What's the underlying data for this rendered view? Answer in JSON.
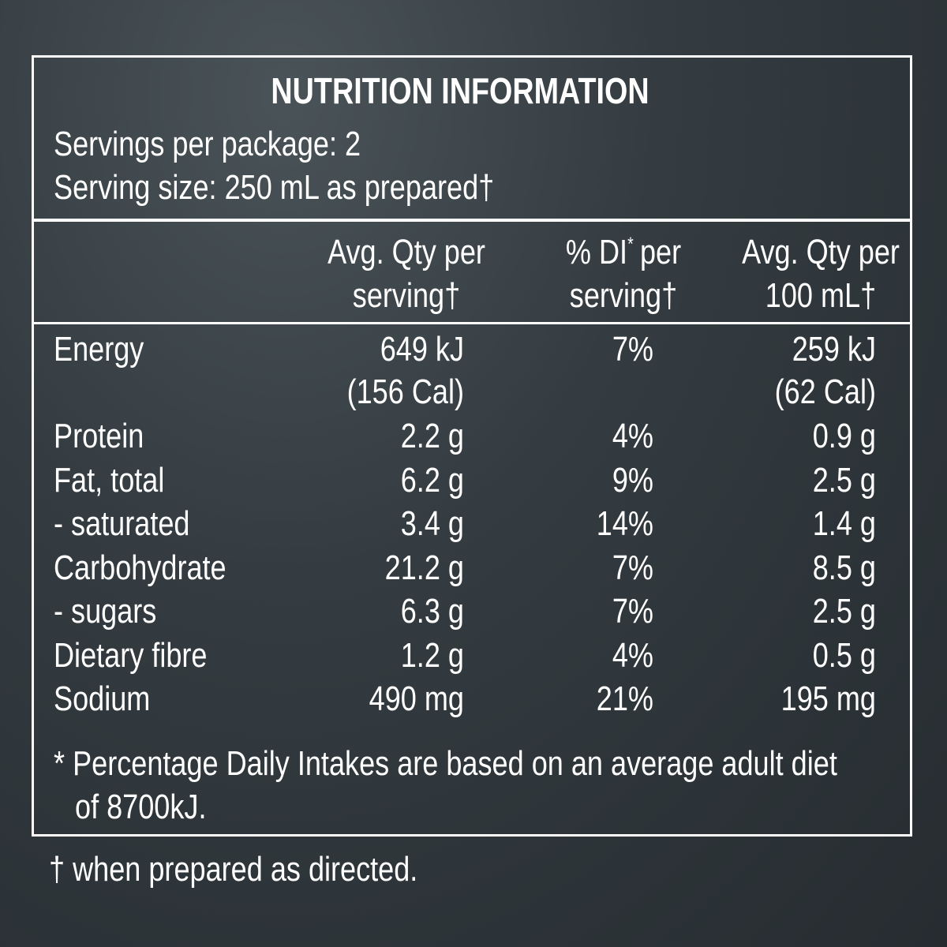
{
  "header": {
    "title": "NUTRITION INFORMATION",
    "servings": "Servings per package: 2",
    "serving_size": "Serving size: 250 mL as prepared†"
  },
  "table": {
    "columns": [
      [
        "Avg. Qty per",
        "serving†"
      ],
      [
        [
          "% DI",
          "*",
          "per"
        ],
        "serving†"
      ],
      [
        "Avg. Qty per",
        "100 mL†"
      ]
    ],
    "rows": [
      {
        "name": "Energy",
        "qty": [
          "649 kJ",
          "(156 Cal)"
        ],
        "di": "7%",
        "per100": [
          "259 kJ",
          "(62 Cal)"
        ]
      },
      {
        "name": "Protein",
        "qty": "2.2 g",
        "di": "4%",
        "per100": "0.9 g"
      },
      {
        "name": "Fat, total",
        "qty": "6.2 g",
        "di": "9%",
        "per100": "2.5 g"
      },
      {
        "name": "- saturated",
        "qty": "3.4 g",
        "di": "14%",
        "per100": "1.4 g"
      },
      {
        "name": "Carbohydrate",
        "qty": "21.2 g",
        "di": "7%",
        "per100": "8.5 g"
      },
      {
        "name": "- sugars",
        "qty": "6.3 g",
        "di": "7%",
        "per100": "2.5 g"
      },
      {
        "name": "Dietary fibre",
        "qty": "1.2 g",
        "di": "4%",
        "per100": "0.5 g"
      },
      {
        "name": "Sodium",
        "qty": "490 mg",
        "di": "21%",
        "per100": "195 mg"
      }
    ]
  },
  "footnote": [
    "* Percentage Daily Intakes are based on an average adult diet",
    "of 8700kJ."
  ],
  "footer": "† when prepared as directed."
}
